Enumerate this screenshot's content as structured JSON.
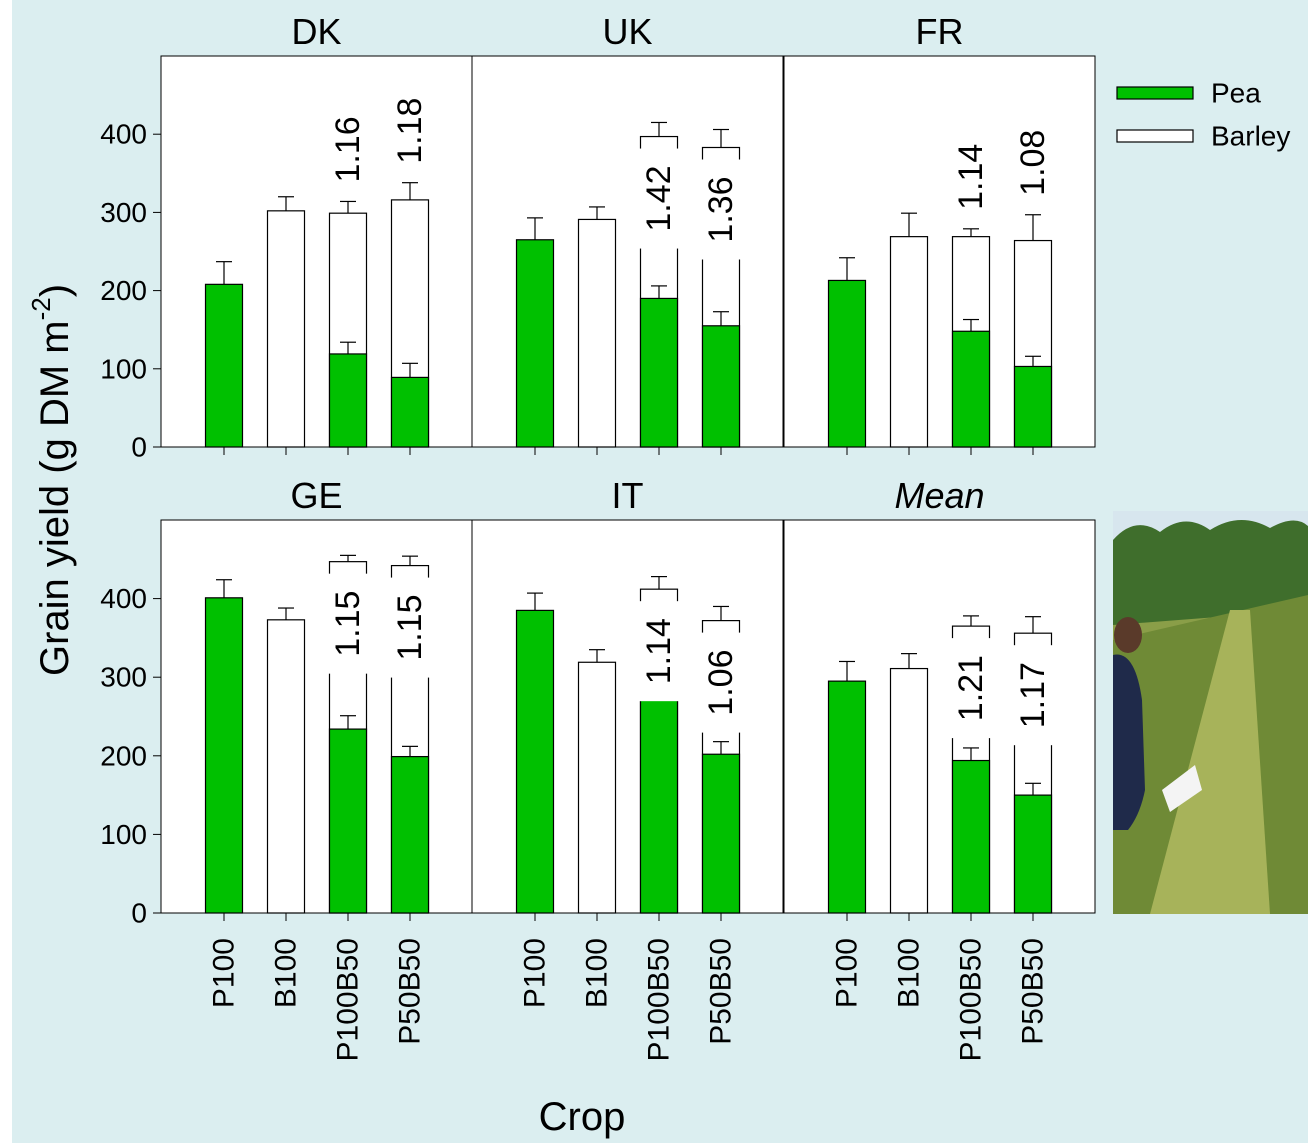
{
  "chart_data": {
    "type": "bar",
    "stacked": true,
    "layout": "2x3 small multiples with shared y axis",
    "ylabel": "Grain yield (g DM m",
    "ylabel_superscript": "-2",
    "ylabel_close": ")",
    "xlabel": "Crop",
    "ylim": [
      0,
      500
    ],
    "yticks": [
      0,
      100,
      200,
      300,
      400
    ],
    "categories": [
      "P100",
      "B100",
      "P100B50",
      "P50B50"
    ],
    "legend": {
      "placement": "top-right",
      "entries": [
        {
          "name": "Pea",
          "color": "#00c000"
        },
        {
          "name": "Barley",
          "color": "#ffffff"
        }
      ]
    },
    "panels": [
      {
        "title": "DK",
        "pea": [
          208,
          0,
          119,
          89
        ],
        "pea_err": [
          29,
          0,
          15,
          18
        ],
        "barley": [
          0,
          302,
          180,
          227
        ],
        "barley_err": [
          0,
          18,
          15,
          22
        ],
        "labels": [
          null,
          null,
          {
            "total": "1.16"
          },
          {
            "total": "1.18"
          }
        ]
      },
      {
        "title": "UK",
        "pea": [
          265,
          0,
          190,
          155
        ],
        "pea_err": [
          28,
          0,
          16,
          18
        ],
        "barley": [
          0,
          291,
          207,
          228
        ],
        "barley_err": [
          0,
          16,
          18,
          23
        ],
        "labels": [
          null,
          null,
          {
            "total": "1.42"
          },
          {
            "total": "1.36"
          }
        ]
      },
      {
        "title": "FR",
        "pea": [
          213,
          0,
          148,
          103
        ],
        "pea_err": [
          29,
          0,
          15,
          13
        ],
        "barley": [
          0,
          269,
          121,
          161
        ],
        "barley_err": [
          0,
          30,
          10,
          33
        ],
        "labels": [
          null,
          null,
          {
            "total": "1.14"
          },
          {
            "total": "1.08"
          }
        ]
      },
      {
        "title": "GE",
        "pea": [
          401,
          0,
          234,
          199
        ],
        "pea_err": [
          23,
          0,
          17,
          13
        ],
        "barley": [
          0,
          373,
          213,
          243
        ],
        "barley_err": [
          0,
          15,
          8,
          12
        ],
        "labels": [
          null,
          null,
          {
            "total": "1.15"
          },
          {
            "total": "1.15"
          }
        ]
      },
      {
        "title": "IT",
        "pea": [
          385,
          0,
          281,
          202
        ],
        "pea_err": [
          22,
          0,
          18,
          16
        ],
        "barley": [
          0,
          319,
          131,
          170
        ],
        "barley_err": [
          0,
          16,
          16,
          18
        ],
        "labels": [
          null,
          null,
          {
            "total": "1.14"
          },
          {
            "total": "1.06"
          }
        ]
      },
      {
        "title": "Mean",
        "italic": true,
        "pea": [
          295,
          0,
          194,
          150
        ],
        "pea_err": [
          25,
          0,
          16,
          15
        ],
        "barley": [
          0,
          311,
          171,
          206
        ],
        "barley_err": [
          0,
          19,
          13,
          21
        ],
        "labels": [
          null,
          null,
          {
            "total": "1.21"
          },
          {
            "total": "1.17"
          }
        ]
      }
    ]
  },
  "colors": {
    "background": "#dbeef0",
    "pea": "#00c000",
    "barley": "#ffffff",
    "photo_sky": "#d7e6ee",
    "photo_trees": "#3f6e2c",
    "photo_crop": "#8a9e48"
  }
}
